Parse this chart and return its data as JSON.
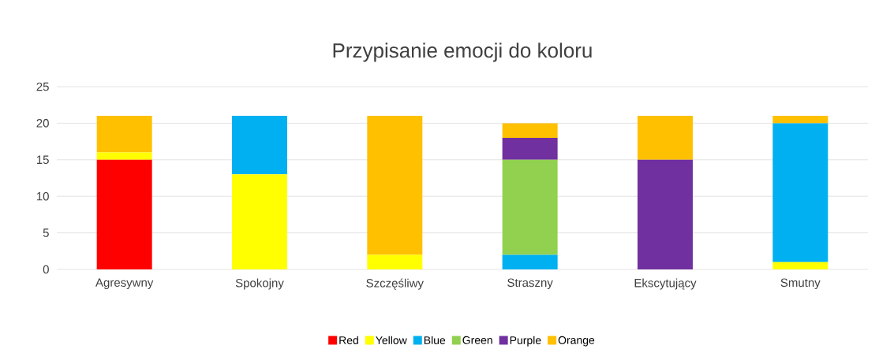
{
  "chart_data": {
    "type": "bar",
    "title": "Przypisanie emocji do koloru",
    "stacked": true,
    "categories": [
      "Agresywny",
      "Spokojny",
      "Szczęśliwy",
      "Straszny",
      "Ekscytujący",
      "Smutny"
    ],
    "series": [
      {
        "name": "Red",
        "color": "#ff0000",
        "values": [
          15,
          0,
          0,
          0,
          0,
          0
        ]
      },
      {
        "name": "Yellow",
        "color": "#ffff00",
        "values": [
          1,
          13,
          2,
          0,
          0,
          1
        ]
      },
      {
        "name": "Blue",
        "color": "#00b0f0",
        "values": [
          0,
          8,
          0,
          2,
          0,
          19
        ]
      },
      {
        "name": "Green",
        "color": "#92d050",
        "values": [
          0,
          0,
          0,
          13,
          0,
          0
        ]
      },
      {
        "name": "Purple",
        "color": "#7030a0",
        "values": [
          0,
          0,
          0,
          3,
          15,
          0
        ]
      },
      {
        "name": "Orange",
        "color": "#ffc000",
        "values": [
          5,
          0,
          19,
          2,
          6,
          1
        ]
      }
    ],
    "ylim": [
      0,
      25
    ],
    "yticks": [
      0,
      5,
      10,
      15,
      20,
      25
    ],
    "grid": "y",
    "legend": "bottom"
  }
}
